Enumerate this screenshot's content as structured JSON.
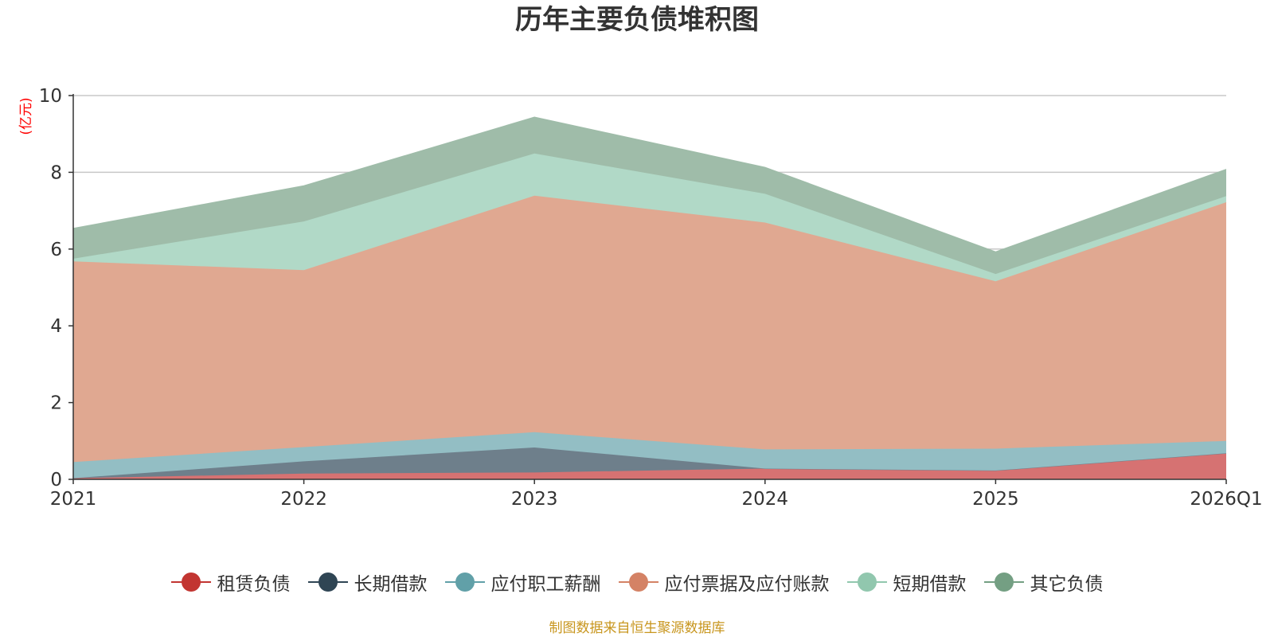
{
  "chart_data": {
    "type": "area",
    "stacked": true,
    "title": "历年主要负债堆积图",
    "unit_label": "(亿元)",
    "categories": [
      "2021",
      "2022",
      "2023",
      "2024",
      "2025",
      "2026Q1"
    ],
    "ylim": [
      0,
      10
    ],
    "yticks": [
      0,
      2,
      4,
      6,
      8,
      10
    ],
    "grid": true,
    "legend_position": "bottom",
    "series": [
      {
        "name": "租赁负债",
        "color": "#c23531",
        "fill": "#d67272",
        "values": [
          0.03,
          0.15,
          0.18,
          0.28,
          0.23,
          0.68
        ]
      },
      {
        "name": "长期借款",
        "color": "#2f4554",
        "fill": "#6e7f8b",
        "values": [
          0.0,
          0.32,
          0.65,
          0.0,
          0.0,
          0.0
        ]
      },
      {
        "name": "应付职工薪酬",
        "color": "#61a0a8",
        "fill": "#93bec4",
        "values": [
          0.42,
          0.37,
          0.4,
          0.5,
          0.57,
          0.32
        ]
      },
      {
        "name": "应付票据及应付账款",
        "color": "#d48265",
        "fill": "#e0a891",
        "values": [
          5.23,
          4.61,
          6.16,
          5.91,
          4.36,
          6.22
        ]
      },
      {
        "name": "短期借款",
        "color": "#91c7ae",
        "fill": "#b1d9c7",
        "values": [
          0.07,
          1.27,
          1.1,
          0.75,
          0.19,
          0.16
        ]
      },
      {
        "name": "其它负债",
        "color": "#749f83",
        "fill": "#9fbca9",
        "values": [
          0.79,
          0.93,
          0.95,
          0.69,
          0.58,
          0.7
        ]
      }
    ]
  },
  "source_note": "制图数据来自恒生聚源数据库"
}
